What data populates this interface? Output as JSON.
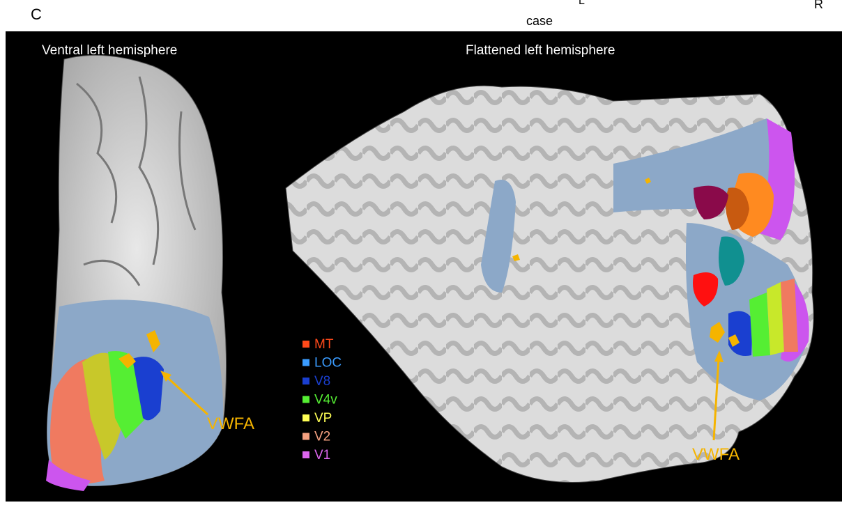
{
  "panel_label": "C",
  "header_fragments": [
    "case",
    "L",
    "R"
  ],
  "left_view": {
    "title": "Ventral left hemisphere",
    "annotation": "VWFA"
  },
  "right_view": {
    "title": "Flattened left hemisphere",
    "annotation": "VWFA"
  },
  "legend": [
    {
      "label": "MT",
      "color": "#ff4a1a"
    },
    {
      "label": "LOC",
      "color": "#3a9cff"
    },
    {
      "label": "V8",
      "color": "#1a3fd0"
    },
    {
      "label": "V4v",
      "color": "#55ee33"
    },
    {
      "label": "VP",
      "color": "#ffff55"
    },
    {
      "label": "V2",
      "color": "#f4a080"
    },
    {
      "label": "V1",
      "color": "#dd66ee"
    }
  ]
}
